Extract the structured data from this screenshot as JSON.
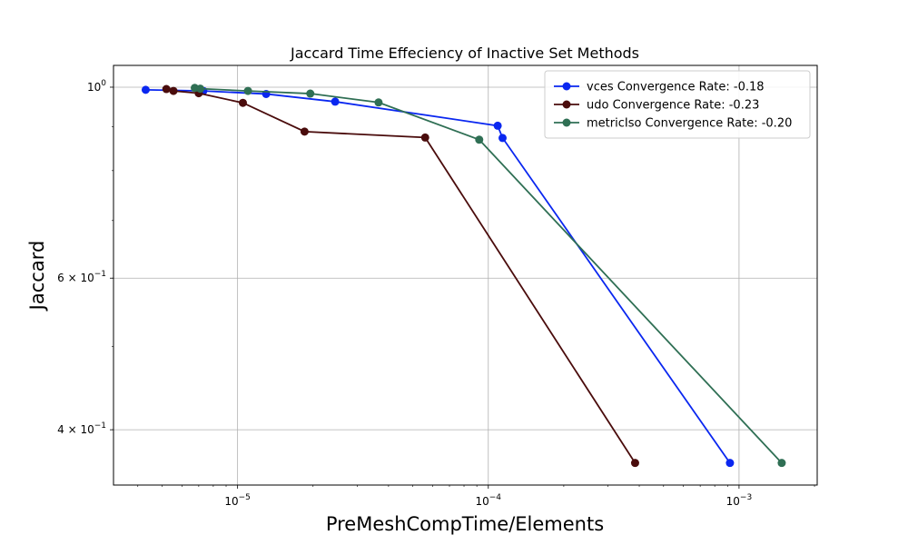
{
  "chart_data": {
    "type": "line",
    "title": "Jaccard Time Effeciency of Inactive Set Methods",
    "xlabel": "PreMeshCompTime/Elements",
    "ylabel": "Jaccard",
    "xscale": "log",
    "yscale": "log",
    "xlim": [
      3.2e-06,
      0.00205
    ],
    "ylim": [
      0.345,
      1.06
    ],
    "grid": true,
    "legend_position": "top-right",
    "x_ticks": [
      {
        "value": 1e-05,
        "base": "10",
        "exp": "−5"
      },
      {
        "value": 0.0001,
        "base": "10",
        "exp": "−4"
      },
      {
        "value": 0.001,
        "base": "10",
        "exp": "−3"
      }
    ],
    "y_ticks": [
      {
        "value": 1.0,
        "mant": "",
        "base": "10",
        "exp": "0"
      },
      {
        "value": 0.6,
        "mant": "6 × ",
        "base": "10",
        "exp": "−1"
      },
      {
        "value": 0.4,
        "mant": "4 × ",
        "base": "10",
        "exp": "−1"
      }
    ],
    "series": [
      {
        "name": "vces Convergence Rate: -0.18",
        "color": "#0a27f0",
        "x": [
          4.3e-06,
          7.3e-06,
          1.3e-05,
          2.45e-05,
          0.000109,
          0.000114,
          0.00092
        ],
        "y": [
          0.993,
          0.99,
          0.982,
          0.962,
          0.902,
          0.873,
          0.366
        ]
      },
      {
        "name": "udo Convergence Rate: -0.23",
        "color": "#4a0c0c",
        "x": [
          5.2e-06,
          5.55e-06,
          7e-06,
          1.05e-05,
          1.85e-05,
          5.6e-05,
          0.000385
        ],
        "y": [
          0.995,
          0.99,
          0.984,
          0.959,
          0.888,
          0.874,
          0.366
        ]
      },
      {
        "name": "metricIso Convergence Rate: -0.20",
        "color": "#2f6f54",
        "x": [
          6.75e-06,
          7.1e-06,
          1.1e-05,
          1.95e-05,
          3.65e-05,
          9.2e-05,
          0.00148
        ],
        "y": [
          0.998,
          0.996,
          0.99,
          0.983,
          0.96,
          0.869,
          0.366
        ]
      }
    ]
  }
}
